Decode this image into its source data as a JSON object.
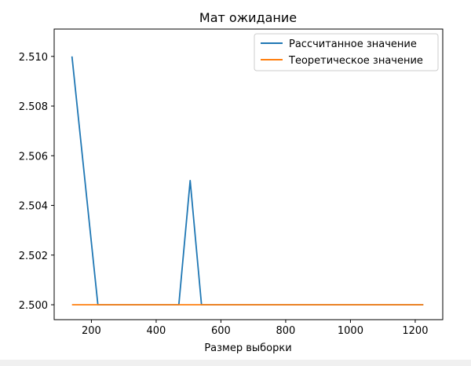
{
  "chart_data": {
    "type": "line",
    "title": "Мат ожидание",
    "xlabel": "Размер выборки",
    "ylabel": "",
    "xlim": [
      85,
      1285
    ],
    "ylim": [
      2.4994,
      2.5111
    ],
    "xticks": [
      200,
      400,
      600,
      800,
      1000,
      1200
    ],
    "yticks": [
      2.5,
      2.502,
      2.504,
      2.506,
      2.508,
      2.51
    ],
    "ytick_labels": [
      "2.500",
      "2.502",
      "2.504",
      "2.506",
      "2.508",
      "2.510"
    ],
    "legend_position": "top-right",
    "grid": false,
    "series": [
      {
        "name": "Рассчитанное значение",
        "color": "#1f77b4",
        "x": [
          140,
          220,
          360,
          440,
          470,
          505,
          540,
          660,
          780,
          820,
          950,
          1225
        ],
        "y": [
          2.51,
          2.5,
          2.5,
          2.5,
          2.5,
          2.505,
          2.5,
          2.5,
          2.5,
          2.5,
          2.5,
          2.5
        ]
      },
      {
        "name": "Теоретическое значение",
        "color": "#ff7f0e",
        "x": [
          140,
          1225
        ],
        "y": [
          2.5,
          2.5
        ]
      }
    ]
  }
}
